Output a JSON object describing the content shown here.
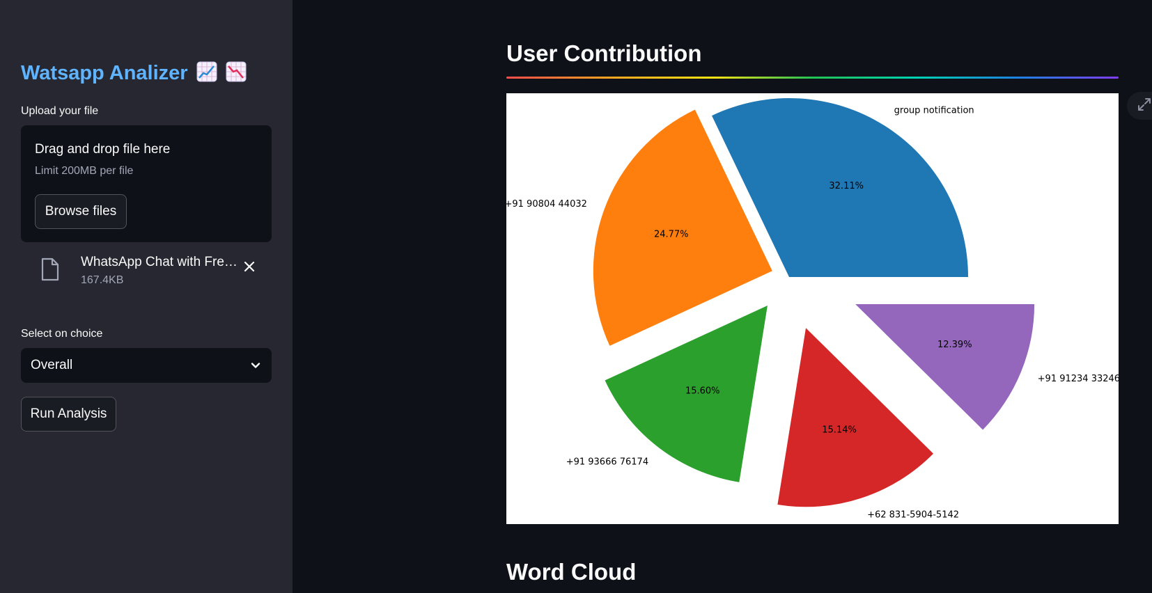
{
  "sidebar": {
    "title": "Watsapp Analizer",
    "title_emoji_icons": [
      "chart-increasing-icon",
      "chart-decreasing-icon"
    ],
    "upload_label": "Upload your file",
    "dropzone": {
      "title": "Drag and drop file here",
      "limit": "Limit 200MB per file",
      "browse_label": "Browse files"
    },
    "uploaded_file": {
      "name": "WhatsApp Chat with Fres...",
      "size": "167.4KB",
      "icon": "file-icon",
      "remove_icon": "close-icon"
    },
    "select_label": "Select on choice",
    "select_value": "Overall",
    "run_label": "Run Analysis"
  },
  "main": {
    "section_title": "User Contribution",
    "next_section_title": "Word Cloud"
  },
  "colors": {
    "accent_title": "#60b4ff",
    "sidebar_bg": "#262730",
    "main_bg": "#0e1117"
  },
  "chart_data": {
    "type": "pie",
    "title": "",
    "slices": [
      {
        "label": "group notification",
        "value": 32.11,
        "pct_label": "32.11%",
        "color": "#1f77b4",
        "explode": 0.0
      },
      {
        "label": "+91 90804 44032",
        "value": 24.77,
        "pct_label": "24.77%",
        "color": "#ff7f0e",
        "explode": 0.1
      },
      {
        "label": "+91 93666 76174",
        "value": 15.6,
        "pct_label": "15.60%",
        "color": "#2ca02c",
        "explode": 0.2
      },
      {
        "label": "+62 831-5904-5142",
        "value": 15.14,
        "pct_label": "15.14%",
        "color": "#d62728",
        "explode": 0.3
      },
      {
        "label": "+91 91234 33246",
        "value": 12.39,
        "pct_label": "12.39%",
        "color": "#9467bd",
        "explode": 0.4
      }
    ],
    "start_angle_deg": 0,
    "direction": "counterclockwise",
    "legend": "none"
  }
}
